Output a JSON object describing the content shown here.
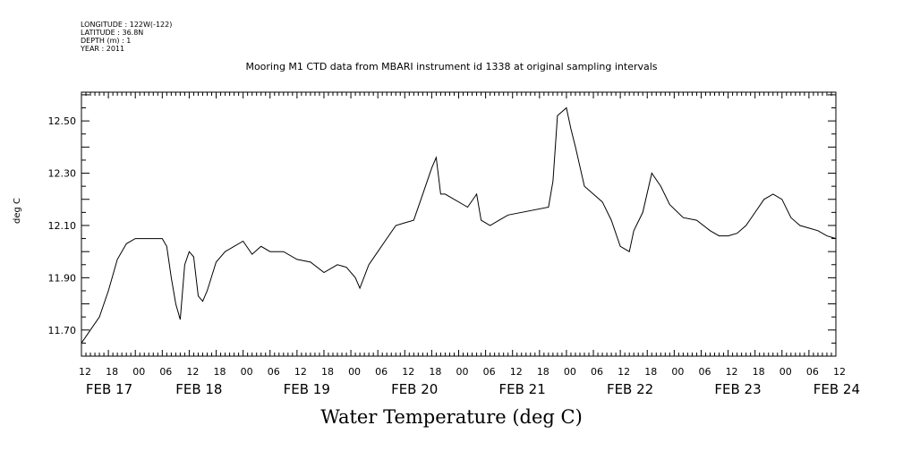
{
  "header": {
    "longitude": "LONGITUDE : 122W(-122)",
    "latitude": "LATITUDE : 36.8N",
    "depth": "DEPTH (m) : 1",
    "year": "YEAR : 2011"
  },
  "chart_data": {
    "type": "line",
    "title": "Mooring M1 CTD data from MBARI instrument id 1338 at original sampling intervals",
    "xlabel": "Water Temperature (deg C)",
    "ylabel": "deg C",
    "xlim": [
      "2011-02-17T12:00",
      "2011-02-24T12:00"
    ],
    "ylim": [
      11.6,
      12.61
    ],
    "yticks": [
      11.7,
      11.9,
      12.1,
      12.3,
      12.5
    ],
    "ytick_labels": [
      "11.70",
      "11.90",
      "12.10",
      "12.30",
      "12.50"
    ],
    "hour_tick_labels": [
      "12",
      "18",
      "00",
      "06",
      "12",
      "18",
      "00",
      "06",
      "12",
      "18",
      "00",
      "06",
      "12",
      "18",
      "00",
      "06",
      "12",
      "18",
      "00",
      "06",
      "12",
      "18",
      "00",
      "06",
      "12",
      "18",
      "00",
      "06",
      "12"
    ],
    "date_tick_labels": [
      {
        "date": "2011-02-17T12:00",
        "label": "FEB 17"
      },
      {
        "date": "2011-02-18T08:00",
        "label": "FEB 18"
      },
      {
        "date": "2011-02-19T08:00",
        "label": "FEB 19"
      },
      {
        "date": "2011-02-20T08:00",
        "label": "FEB 20"
      },
      {
        "date": "2011-02-21T08:00",
        "label": "FEB 21"
      },
      {
        "date": "2011-02-22T08:00",
        "label": "FEB 22"
      },
      {
        "date": "2011-02-23T08:00",
        "label": "FEB 23"
      },
      {
        "date": "2011-02-24T06:00",
        "label": "FEB 24"
      }
    ],
    "grid": false,
    "series": [
      {
        "x": [
          "2011-02-17T12:00",
          "2011-02-17T14:00",
          "2011-02-17T16:00",
          "2011-02-17T18:00",
          "2011-02-17T20:00",
          "2011-02-17T22:00",
          "2011-02-18T00:00",
          "2011-02-18T02:00",
          "2011-02-18T04:00",
          "2011-02-18T06:00",
          "2011-02-18T07:00",
          "2011-02-18T08:00",
          "2011-02-18T09:00",
          "2011-02-18T10:00",
          "2011-02-18T11:00",
          "2011-02-18T12:00",
          "2011-02-18T13:00",
          "2011-02-18T14:00",
          "2011-02-18T15:00",
          "2011-02-18T16:00",
          "2011-02-18T18:00",
          "2011-02-18T20:00",
          "2011-02-18T22:00",
          "2011-02-19T00:00",
          "2011-02-19T02:00",
          "2011-02-19T04:00",
          "2011-02-19T06:00",
          "2011-02-19T09:00",
          "2011-02-19T12:00",
          "2011-02-19T15:00",
          "2011-02-19T18:00",
          "2011-02-19T21:00",
          "2011-02-19T23:00",
          "2011-02-20T01:00",
          "2011-02-20T02:00",
          "2011-02-20T04:00",
          "2011-02-20T06:00",
          "2011-02-20T08:00",
          "2011-02-20T10:00",
          "2011-02-20T12:00",
          "2011-02-20T14:00",
          "2011-02-20T16:00",
          "2011-02-20T18:00",
          "2011-02-20T19:00",
          "2011-02-20T20:00",
          "2011-02-20T21:00",
          "2011-02-21T02:00",
          "2011-02-21T04:00",
          "2011-02-21T05:00",
          "2011-02-21T07:00",
          "2011-02-21T09:00",
          "2011-02-21T11:00",
          "2011-02-21T20:00",
          "2011-02-21T21:00",
          "2011-02-21T22:00",
          "2011-02-22T00:00",
          "2011-02-22T01:00",
          "2011-02-22T02:00",
          "2011-02-22T04:00",
          "2011-02-22T06:00",
          "2011-02-22T08:00",
          "2011-02-22T10:00",
          "2011-02-22T12:00",
          "2011-02-22T14:00",
          "2011-02-22T15:00",
          "2011-02-22T17:00",
          "2011-02-22T19:00",
          "2011-02-22T21:00",
          "2011-02-22T23:00",
          "2011-02-23T02:00",
          "2011-02-23T05:00",
          "2011-02-23T08:00",
          "2011-02-23T10:00",
          "2011-02-23T12:00",
          "2011-02-23T14:00",
          "2011-02-23T16:00",
          "2011-02-23T18:00",
          "2011-02-23T20:00",
          "2011-02-23T22:00",
          "2011-02-24T00:00",
          "2011-02-24T02:00",
          "2011-02-24T04:00",
          "2011-02-24T06:00",
          "2011-02-24T08:00",
          "2011-02-24T10:00",
          "2011-02-24T12:00"
        ],
        "y": [
          11.65,
          11.7,
          11.75,
          11.85,
          11.97,
          12.03,
          12.05,
          12.05,
          12.05,
          12.05,
          12.02,
          11.9,
          11.8,
          11.74,
          11.95,
          12.0,
          11.98,
          11.83,
          11.81,
          11.85,
          11.96,
          12.0,
          12.02,
          12.04,
          11.99,
          12.02,
          12.0,
          12.0,
          11.97,
          11.96,
          11.92,
          11.95,
          11.94,
          11.9,
          11.86,
          11.95,
          12.0,
          12.05,
          12.1,
          12.11,
          12.12,
          12.22,
          12.32,
          12.36,
          12.22,
          12.22,
          12.17,
          12.22,
          12.12,
          12.1,
          12.12,
          12.14,
          12.17,
          12.27,
          12.52,
          12.55,
          12.47,
          12.4,
          12.25,
          12.22,
          12.19,
          12.12,
          12.02,
          12.0,
          12.08,
          12.15,
          12.3,
          12.25,
          12.18,
          12.13,
          12.12,
          12.08,
          12.06,
          12.06,
          12.07,
          12.1,
          12.15,
          12.2,
          12.22,
          12.2,
          12.13,
          12.1,
          12.09,
          12.08,
          12.06,
          12.05
        ]
      }
    ]
  }
}
